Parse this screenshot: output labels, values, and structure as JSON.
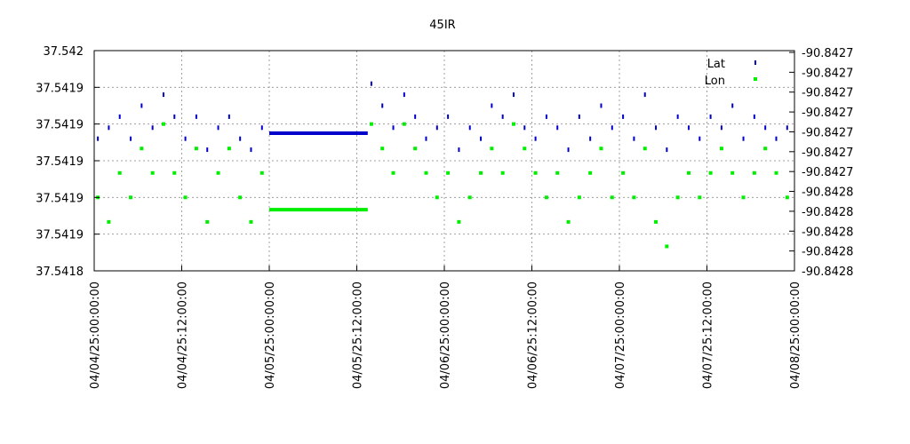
{
  "chart_data": {
    "type": "scatter",
    "title": "45IR",
    "xlabel": "",
    "ylabel": "",
    "grid": true,
    "legend_position": "top-right",
    "x_range": [
      "04/04/25:00:00:00",
      "04/08/25:00:00:00"
    ],
    "x_ticks": [
      "04/04/25:00:00:00",
      "04/04/25:12:00:00",
      "04/05/25:00:00:00",
      "04/05/25:12:00:00",
      "04/06/25:00:00:00",
      "04/06/25:12:00:00",
      "04/07/25:00:00:00",
      "04/07/25:12:00:00",
      "04/08/25:00:00:00"
    ],
    "y_left_ticks": [
      "37.542",
      "37.5419",
      "37.5419",
      "37.5419",
      "37.5419",
      "37.5419",
      "37.5418"
    ],
    "y_right_ticks": [
      "-90.8427",
      "-90.8427",
      "-90.8427",
      "-90.8427",
      "-90.8427",
      "-90.8427",
      "-90.8427",
      "-90.8428",
      "-90.8428",
      "-90.8428",
      "-90.8428",
      "-90.8428"
    ],
    "gap": {
      "from_hour": 24,
      "to_hour": 37.5
    },
    "series": [
      {
        "name": "Lat",
        "color": "#0000cc",
        "marker": "dash",
        "axis": "left",
        "points": [
          [
            0.5,
            37.54192
          ],
          [
            2,
            37.54193
          ],
          [
            3.5,
            37.54194
          ],
          [
            5,
            37.54192
          ],
          [
            6.5,
            37.54195
          ],
          [
            8,
            37.54193
          ],
          [
            9.5,
            37.54196
          ],
          [
            11,
            37.54194
          ],
          [
            12.5,
            37.54192
          ],
          [
            14,
            37.54194
          ],
          [
            15.5,
            37.54191
          ],
          [
            17,
            37.54193
          ],
          [
            18.5,
            37.54194
          ],
          [
            20,
            37.54192
          ],
          [
            21.5,
            37.54191
          ],
          [
            23,
            37.54193
          ],
          [
            38,
            37.54197
          ],
          [
            39.5,
            37.54195
          ],
          [
            41,
            37.54193
          ],
          [
            42.5,
            37.54196
          ],
          [
            44,
            37.54194
          ],
          [
            45.5,
            37.54192
          ],
          [
            47,
            37.54193
          ],
          [
            48.5,
            37.54194
          ],
          [
            50,
            37.54191
          ],
          [
            51.5,
            37.54193
          ],
          [
            53,
            37.54192
          ],
          [
            54.5,
            37.54195
          ],
          [
            56,
            37.54194
          ],
          [
            57.5,
            37.54196
          ],
          [
            59,
            37.54193
          ],
          [
            60.5,
            37.54192
          ],
          [
            62,
            37.54194
          ],
          [
            63.5,
            37.54193
          ],
          [
            65,
            37.54191
          ],
          [
            66.5,
            37.54194
          ],
          [
            68,
            37.54192
          ],
          [
            69.5,
            37.54195
          ],
          [
            71,
            37.54193
          ],
          [
            72.5,
            37.54194
          ],
          [
            74,
            37.54192
          ],
          [
            75.5,
            37.54196
          ],
          [
            77,
            37.54193
          ],
          [
            78.5,
            37.54191
          ],
          [
            80,
            37.54194
          ],
          [
            81.5,
            37.54193
          ],
          [
            83,
            37.54192
          ],
          [
            84.5,
            37.54194
          ],
          [
            86,
            37.54193
          ],
          [
            87.5,
            37.54195
          ],
          [
            89,
            37.54192
          ],
          [
            90.5,
            37.54194
          ],
          [
            92,
            37.54193
          ],
          [
            93.5,
            37.54192
          ],
          [
            95,
            37.54193
          ]
        ]
      },
      {
        "name": "Lon",
        "color": "#00ee00",
        "marker": "square",
        "axis": "right",
        "points": [
          [
            0.5,
            -90.84278
          ],
          [
            2,
            -90.84279
          ],
          [
            3.5,
            -90.84277
          ],
          [
            5,
            -90.84278
          ],
          [
            6.5,
            -90.84276
          ],
          [
            8,
            -90.84277
          ],
          [
            9.5,
            -90.84275
          ],
          [
            11,
            -90.84277
          ],
          [
            12.5,
            -90.84278
          ],
          [
            14,
            -90.84276
          ],
          [
            15.5,
            -90.84279
          ],
          [
            17,
            -90.84277
          ],
          [
            18.5,
            -90.84276
          ],
          [
            20,
            -90.84278
          ],
          [
            21.5,
            -90.84279
          ],
          [
            23,
            -90.84277
          ],
          [
            38,
            -90.84275
          ],
          [
            39.5,
            -90.84276
          ],
          [
            41,
            -90.84277
          ],
          [
            42.5,
            -90.84275
          ],
          [
            44,
            -90.84276
          ],
          [
            45.5,
            -90.84277
          ],
          [
            47,
            -90.84278
          ],
          [
            48.5,
            -90.84277
          ],
          [
            50,
            -90.84279
          ],
          [
            51.5,
            -90.84278
          ],
          [
            53,
            -90.84277
          ],
          [
            54.5,
            -90.84276
          ],
          [
            56,
            -90.84277
          ],
          [
            57.5,
            -90.84275
          ],
          [
            59,
            -90.84276
          ],
          [
            60.5,
            -90.84277
          ],
          [
            62,
            -90.84278
          ],
          [
            63.5,
            -90.84277
          ],
          [
            65,
            -90.84279
          ],
          [
            66.5,
            -90.84278
          ],
          [
            68,
            -90.84277
          ],
          [
            69.5,
            -90.84276
          ],
          [
            71,
            -90.84278
          ],
          [
            72.5,
            -90.84277
          ],
          [
            74,
            -90.84278
          ],
          [
            75.5,
            -90.84276
          ],
          [
            77,
            -90.84279
          ],
          [
            78.5,
            -90.8428
          ],
          [
            80,
            -90.84278
          ],
          [
            81.5,
            -90.84277
          ],
          [
            83,
            -90.84278
          ],
          [
            84.5,
            -90.84277
          ],
          [
            86,
            -90.84276
          ],
          [
            87.5,
            -90.84277
          ],
          [
            89,
            -90.84278
          ],
          [
            90.5,
            -90.84277
          ],
          [
            92,
            -90.84276
          ],
          [
            93.5,
            -90.84277
          ],
          [
            95,
            -90.84278
          ]
        ]
      }
    ]
  }
}
